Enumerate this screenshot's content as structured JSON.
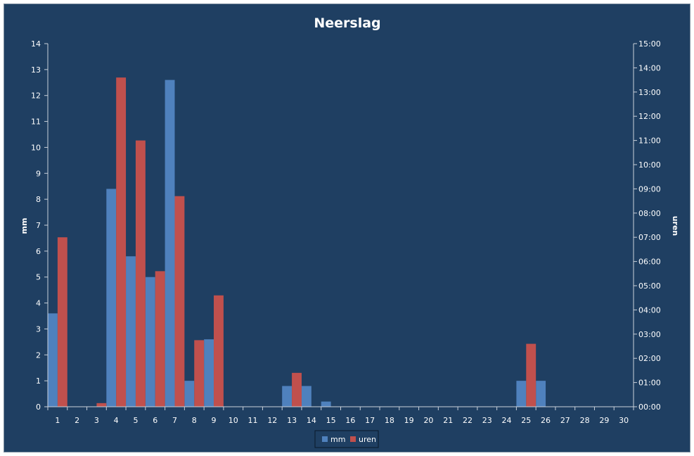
{
  "chart_data": {
    "type": "bar",
    "title": "Neerslag",
    "categories": [
      "1",
      "2",
      "3",
      "4",
      "5",
      "6",
      "7",
      "8",
      "9",
      "10",
      "11",
      "12",
      "13",
      "14",
      "15",
      "16",
      "17",
      "18",
      "19",
      "20",
      "21",
      "22",
      "23",
      "24",
      "25",
      "26",
      "27",
      "28",
      "29",
      "30"
    ],
    "series": [
      {
        "name": "mm",
        "axis": "left",
        "color": "#4f81bd",
        "values": [
          3.6,
          0,
          0,
          8.4,
          5.8,
          5.0,
          12.6,
          1.0,
          2.6,
          0,
          0,
          0,
          0.8,
          0.8,
          0.2,
          0,
          0,
          0,
          0,
          0,
          0,
          0,
          0,
          0,
          1.0,
          1.0,
          0,
          0,
          0,
          0
        ]
      },
      {
        "name": "uren",
        "axis": "right",
        "color": "#c0504d",
        "values": [
          7.0,
          0,
          0.15,
          13.6,
          11.0,
          5.6,
          8.7,
          2.75,
          4.6,
          0,
          0,
          0,
          1.4,
          0,
          0,
          0,
          0,
          0,
          0,
          0,
          0,
          0,
          0,
          0,
          2.6,
          0,
          0,
          0,
          0,
          0
        ]
      }
    ],
    "ylabel": "mm",
    "ylim": [
      0,
      14
    ],
    "yticks": [
      "0",
      "1",
      "2",
      "3",
      "4",
      "5",
      "6",
      "7",
      "8",
      "9",
      "10",
      "11",
      "12",
      "13",
      "14"
    ],
    "y2label": "uren",
    "y2lim": [
      0,
      15
    ],
    "y2ticks": [
      "00:00",
      "01:00",
      "02:00",
      "03:00",
      "04:00",
      "05:00",
      "06:00",
      "07:00",
      "08:00",
      "09:00",
      "10:00",
      "11:00",
      "12:00",
      "13:00",
      "14:00",
      "15:00"
    ],
    "grid": false,
    "legend_position": "bottom",
    "colors": {
      "background": "#1f3f62",
      "text": "#ffffff",
      "axis": "#c8d0da"
    }
  }
}
